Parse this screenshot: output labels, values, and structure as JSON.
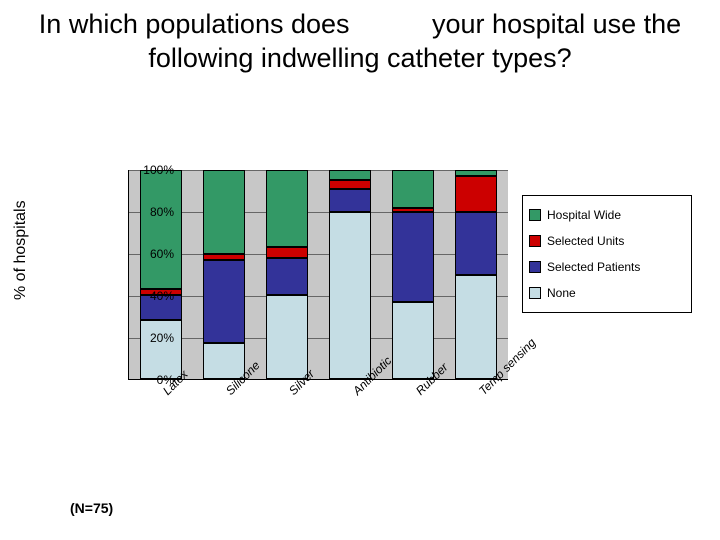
{
  "title": "In which populations does           your hospital use the following indwelling catheter types?",
  "ylabel": "% of hospitals",
  "note": "(N=75)",
  "chart": {
    "type": "stacked-bar",
    "background_color": "#c7c7c7",
    "grid_color": "#666666",
    "ylim": [
      0,
      100
    ],
    "ytick_step": 20,
    "yticks": [
      "0%",
      "20%",
      "40%",
      "60%",
      "80%",
      "100%"
    ],
    "categories": [
      "Latex",
      "Silicone",
      "Silver",
      "Antibiotic",
      "Rubber",
      "Temp sensing"
    ],
    "series": [
      {
        "name": "None",
        "color": "#c5dde4"
      },
      {
        "name": "Selected Patients",
        "color": "#333399"
      },
      {
        "name": "Selected Units",
        "color": "#cc0000"
      },
      {
        "name": "Hospital Wide",
        "color": "#339966"
      }
    ],
    "legend_order": [
      {
        "name": "Hospital Wide",
        "color": "#339966"
      },
      {
        "name": "Selected Units",
        "color": "#cc0000"
      },
      {
        "name": "Selected Patients",
        "color": "#333399"
      },
      {
        "name": "None",
        "color": "#c5dde4"
      }
    ],
    "data": [
      {
        "category": "Latex",
        "None": 28,
        "Selected Patients": 12,
        "Selected Units": 3,
        "Hospital Wide": 57
      },
      {
        "category": "Silicone",
        "None": 17,
        "Selected Patients": 40,
        "Selected Units": 3,
        "Hospital Wide": 40
      },
      {
        "category": "Silver",
        "None": 40,
        "Selected Patients": 18,
        "Selected Units": 5,
        "Hospital Wide": 37
      },
      {
        "category": "Antibiotic",
        "None": 80,
        "Selected Patients": 11,
        "Selected Units": 4,
        "Hospital Wide": 5
      },
      {
        "category": "Rubber",
        "None": 37,
        "Selected Patients": 43,
        "Selected Units": 2,
        "Hospital Wide": 18
      },
      {
        "category": "Temp sensing",
        "None": 50,
        "Selected Patients": 30,
        "Selected Units": 17,
        "Hospital Wide": 3
      }
    ]
  }
}
